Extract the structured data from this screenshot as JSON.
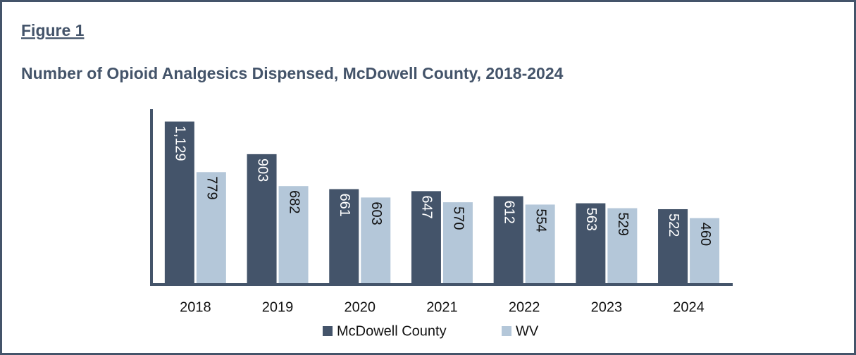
{
  "header": {
    "figure": "Figure 1"
  },
  "chart_data": {
    "type": "bar",
    "title": "Number of Opioid Analgesics Dispensed, McDowell County, 2018-2024",
    "categories": [
      "2018",
      "2019",
      "2020",
      "2021",
      "2022",
      "2023",
      "2024"
    ],
    "series": [
      {
        "name": "McDowell County",
        "color": "#44546a",
        "values": [
          1129,
          903,
          661,
          647,
          612,
          563,
          522
        ],
        "value_labels": [
          "1,129",
          "903",
          "661",
          "647",
          "612",
          "563",
          "522"
        ]
      },
      {
        "name": "WV",
        "color": "#b4c7d9",
        "values": [
          779,
          682,
          603,
          570,
          554,
          529,
          460
        ]
      }
    ],
    "ylim": [
      0,
      1200
    ],
    "legend": "bottom"
  }
}
